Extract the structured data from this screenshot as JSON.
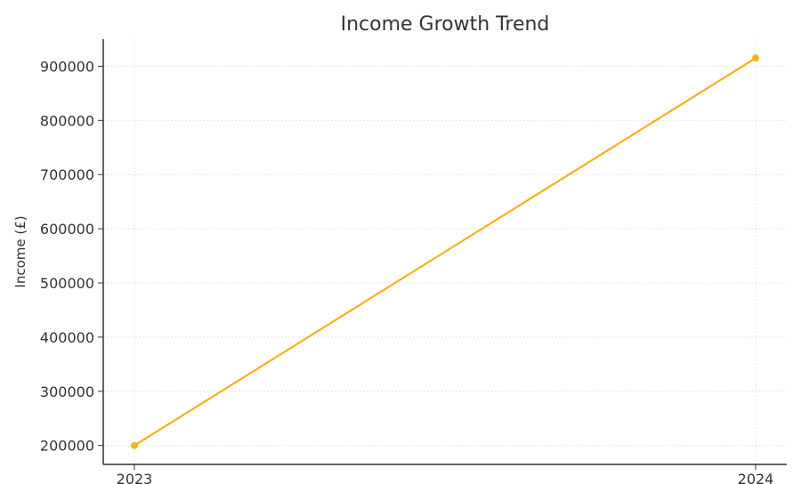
{
  "chart_data": {
    "type": "line",
    "title": "Income Growth Trend",
    "xlabel": "",
    "ylabel": "Income (£)",
    "categories": [
      "2023",
      "2024"
    ],
    "series": [
      {
        "values": [
          200000,
          915000
        ],
        "color": "#f5b11d"
      }
    ],
    "yticks": [
      200000,
      300000,
      400000,
      500000,
      600000,
      700000,
      800000,
      900000
    ],
    "ytick_labels": [
      "200000",
      "300000",
      "400000",
      "500000",
      "600000",
      "700000",
      "800000",
      "900000"
    ],
    "ylim": [
      165000,
      950000
    ],
    "grid": true,
    "legend": "none"
  }
}
